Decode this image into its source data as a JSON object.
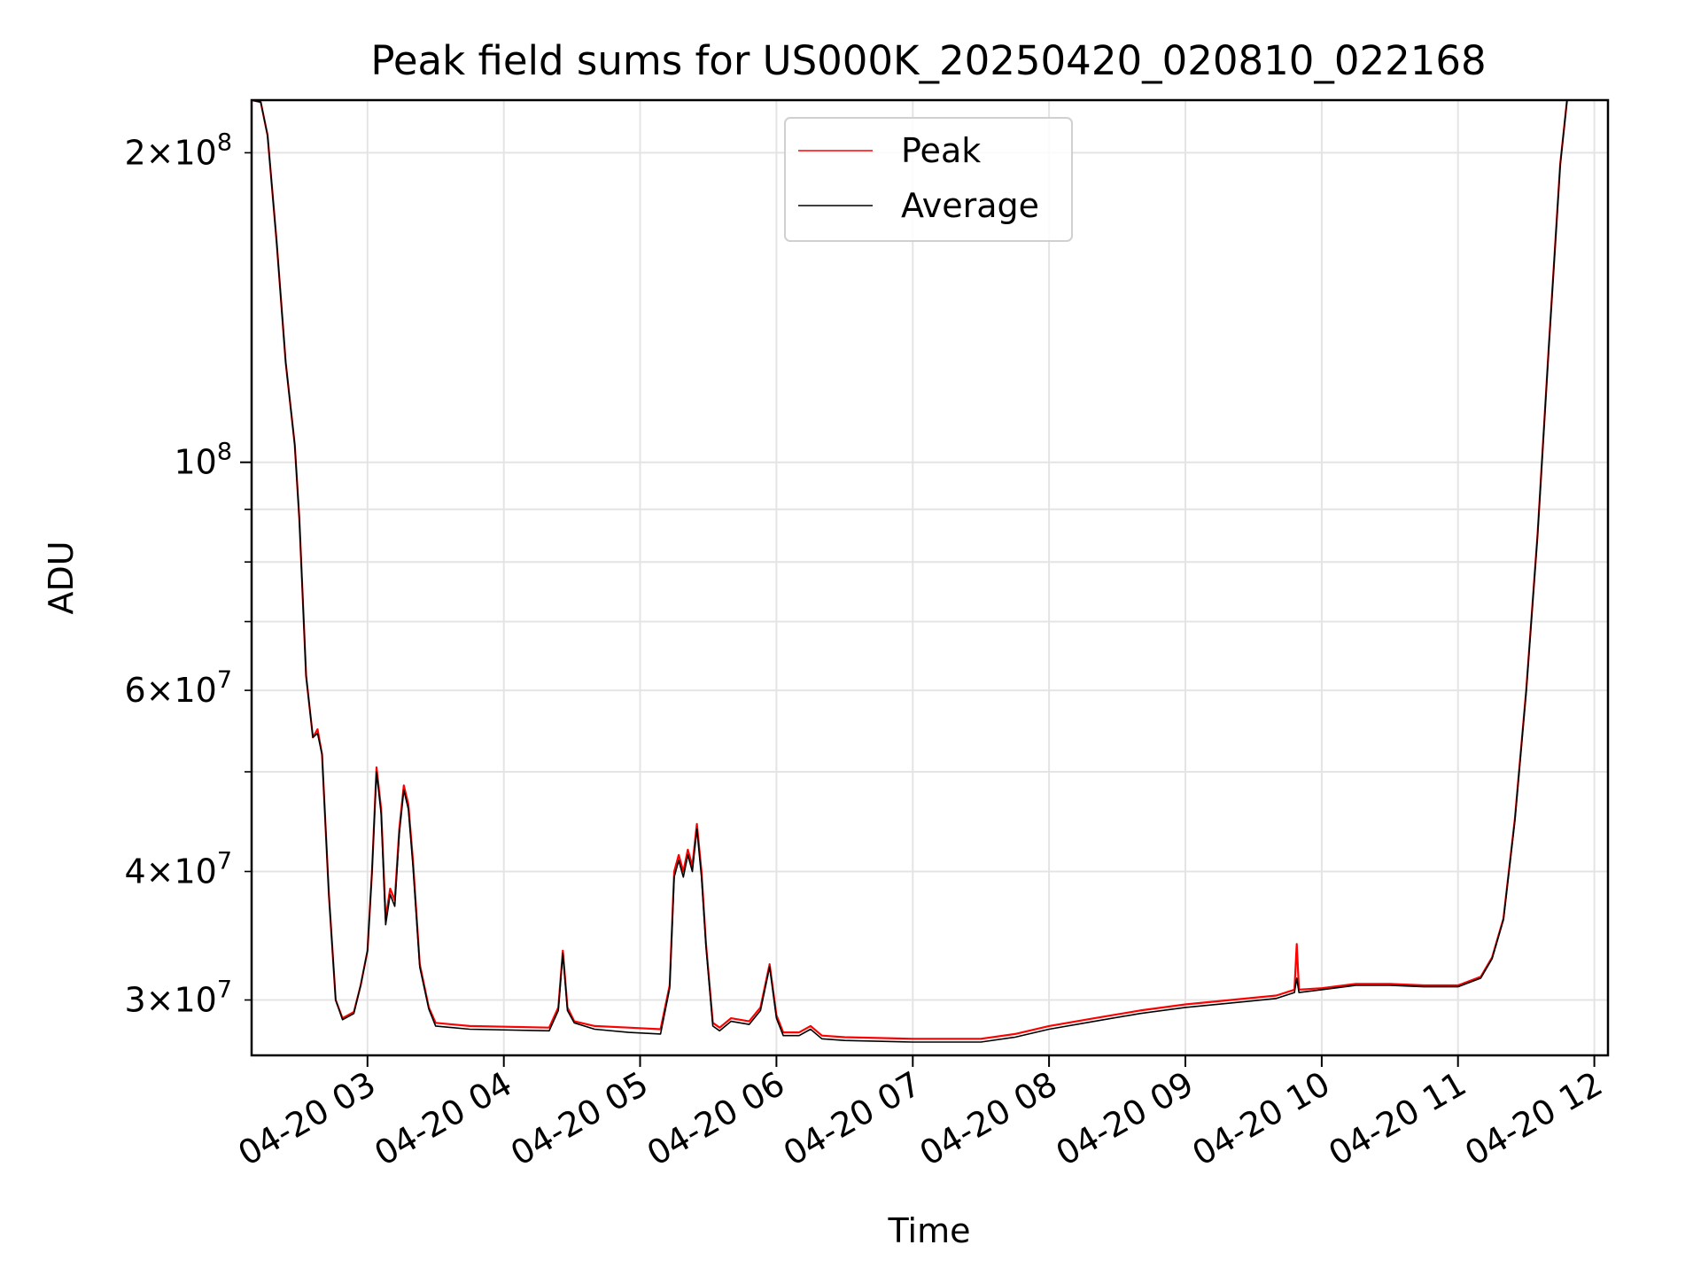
{
  "chart_data": {
    "type": "line",
    "title": "Peak field sums for US000K_20250420_020810_022168",
    "xlabel": "Time",
    "ylabel": "ADU",
    "yscale": "log",
    "ylim": [
      26500000,
      225000000
    ],
    "xlim": [
      "04-20 02:09",
      "04-20 12:06"
    ],
    "grid": true,
    "legend_position": "upper center",
    "x_ticks": [
      "04-20 03",
      "04-20 04",
      "04-20 05",
      "04-20 06",
      "04-20 07",
      "04-20 08",
      "04-20 09",
      "04-20 10",
      "04-20 11",
      "04-20 12"
    ],
    "y_ticks": [
      {
        "value": 30000000,
        "mant": "3",
        "exp": "7"
      },
      {
        "value": 40000000,
        "mant": "4",
        "exp": "7"
      },
      {
        "value": 60000000,
        "mant": "6",
        "exp": "7"
      },
      {
        "value": 100000000,
        "mant": "",
        "exp": "8"
      },
      {
        "value": 200000000,
        "mant": "2",
        "exp": "8"
      }
    ],
    "series": [
      {
        "name": "Peak",
        "color": "#ff0000",
        "points": [
          [
            "04-20 02:09",
            225000000
          ],
          [
            "04-20 02:13",
            224000000
          ],
          [
            "04-20 02:16",
            208000000
          ],
          [
            "04-20 02:20",
            164000000
          ],
          [
            "04-20 02:24",
            125000000
          ],
          [
            "04-20 02:28",
            104000000
          ],
          [
            "04-20 02:30",
            88000000
          ],
          [
            "04-20 02:33",
            62000000
          ],
          [
            "04-20 02:36",
            54000000
          ],
          [
            "04-20 02:38",
            55000000
          ],
          [
            "04-20 02:40",
            52000000
          ],
          [
            "04-20 02:43",
            38000000
          ],
          [
            "04-20 02:46",
            30000000
          ],
          [
            "04-20 02:49",
            28800000
          ],
          [
            "04-20 02:54",
            29200000
          ],
          [
            "04-20 02:57",
            31000000
          ],
          [
            "04-20 03:00",
            33500000
          ],
          [
            "04-20 03:02",
            40000000
          ],
          [
            "04-20 03:04",
            50500000
          ],
          [
            "04-20 03:06",
            46000000
          ],
          [
            "04-20 03:08",
            36000000
          ],
          [
            "04-20 03:10",
            38500000
          ],
          [
            "04-20 03:12",
            37500000
          ],
          [
            "04-20 03:14",
            44000000
          ],
          [
            "04-20 03:16",
            48500000
          ],
          [
            "04-20 03:18",
            46500000
          ],
          [
            "04-20 03:20",
            41000000
          ],
          [
            "04-20 03:23",
            32500000
          ],
          [
            "04-20 03:27",
            29500000
          ],
          [
            "04-20 03:30",
            28500000
          ],
          [
            "04-20 03:45",
            28300000
          ],
          [
            "04-20 04:20",
            28200000
          ],
          [
            "04-20 04:24",
            29500000
          ],
          [
            "04-20 04:26",
            33500000
          ],
          [
            "04-20 04:28",
            29500000
          ],
          [
            "04-20 04:31",
            28600000
          ],
          [
            "04-20 04:40",
            28300000
          ],
          [
            "04-20 04:55",
            28200000
          ],
          [
            "04-20 05:09",
            28100000
          ],
          [
            "04-20 05:13",
            31000000
          ],
          [
            "04-20 05:15",
            40000000
          ],
          [
            "04-20 05:17",
            41500000
          ],
          [
            "04-20 05:19",
            40000000
          ],
          [
            "04-20 05:21",
            42000000
          ],
          [
            "04-20 05:23",
            40500000
          ],
          [
            "04-20 05:25",
            44500000
          ],
          [
            "04-20 05:27",
            40000000
          ],
          [
            "04-20 05:29",
            34000000
          ],
          [
            "04-20 05:32",
            28500000
          ],
          [
            "04-20 05:35",
            28200000
          ],
          [
            "04-20 05:40",
            28800000
          ],
          [
            "04-20 05:48",
            28600000
          ],
          [
            "04-20 05:53",
            29500000
          ],
          [
            "04-20 05:57",
            32500000
          ],
          [
            "04-20 06:00",
            29000000
          ],
          [
            "04-20 06:03",
            27900000
          ],
          [
            "04-20 06:10",
            27900000
          ],
          [
            "04-20 06:15",
            28300000
          ],
          [
            "04-20 06:20",
            27700000
          ],
          [
            "04-20 06:30",
            27600000
          ],
          [
            "04-20 07:00",
            27500000
          ],
          [
            "04-20 07:30",
            27500000
          ],
          [
            "04-20 07:45",
            27800000
          ],
          [
            "04-20 08:00",
            28300000
          ],
          [
            "04-20 08:20",
            28800000
          ],
          [
            "04-20 08:40",
            29300000
          ],
          [
            "04-20 09:00",
            29700000
          ],
          [
            "04-20 09:20",
            30000000
          ],
          [
            "04-20 09:40",
            30300000
          ],
          [
            "04-20 09:48",
            30700000
          ],
          [
            "04-20 09:49",
            34000000
          ],
          [
            "04-20 09:50",
            30700000
          ],
          [
            "04-20 10:00",
            30800000
          ],
          [
            "04-20 10:15",
            31100000
          ],
          [
            "04-20 10:30",
            31100000
          ],
          [
            "04-20 10:45",
            31000000
          ],
          [
            "04-20 11:00",
            31000000
          ],
          [
            "04-20 11:10",
            31600000
          ],
          [
            "04-20 11:15",
            33000000
          ],
          [
            "04-20 11:20",
            36000000
          ],
          [
            "04-20 11:25",
            45000000
          ],
          [
            "04-20 11:30",
            60000000
          ],
          [
            "04-20 11:35",
            85000000
          ],
          [
            "04-20 11:40",
            130000000
          ],
          [
            "04-20 11:45",
            195000000
          ],
          [
            "04-20 11:48",
            225000000
          ]
        ]
      },
      {
        "name": "Average",
        "color": "#000000",
        "points": [
          [
            "04-20 02:09",
            225000000
          ],
          [
            "04-20 02:13",
            224000000
          ],
          [
            "04-20 02:16",
            208000000
          ],
          [
            "04-20 02:20",
            164000000
          ],
          [
            "04-20 02:24",
            125000000
          ],
          [
            "04-20 02:28",
            104000000
          ],
          [
            "04-20 02:30",
            88000000
          ],
          [
            "04-20 02:33",
            62000000
          ],
          [
            "04-20 02:36",
            54000000
          ],
          [
            "04-20 02:38",
            54500000
          ],
          [
            "04-20 02:40",
            52000000
          ],
          [
            "04-20 02:43",
            38000000
          ],
          [
            "04-20 02:46",
            30000000
          ],
          [
            "04-20 02:49",
            28700000
          ],
          [
            "04-20 02:54",
            29100000
          ],
          [
            "04-20 02:57",
            31000000
          ],
          [
            "04-20 03:00",
            33500000
          ],
          [
            "04-20 03:02",
            40000000
          ],
          [
            "04-20 03:04",
            50000000
          ],
          [
            "04-20 03:06",
            45500000
          ],
          [
            "04-20 03:08",
            35500000
          ],
          [
            "04-20 03:10",
            38000000
          ],
          [
            "04-20 03:12",
            37000000
          ],
          [
            "04-20 03:14",
            43500000
          ],
          [
            "04-20 03:16",
            48000000
          ],
          [
            "04-20 03:18",
            46000000
          ],
          [
            "04-20 03:20",
            40500000
          ],
          [
            "04-20 03:23",
            32300000
          ],
          [
            "04-20 03:27",
            29400000
          ],
          [
            "04-20 03:30",
            28300000
          ],
          [
            "04-20 03:45",
            28100000
          ],
          [
            "04-20 04:20",
            28000000
          ],
          [
            "04-20 04:24",
            29300000
          ],
          [
            "04-20 04:26",
            33300000
          ],
          [
            "04-20 04:28",
            29300000
          ],
          [
            "04-20 04:31",
            28500000
          ],
          [
            "04-20 04:40",
            28100000
          ],
          [
            "04-20 04:55",
            27900000
          ],
          [
            "04-20 05:09",
            27800000
          ],
          [
            "04-20 05:13",
            30800000
          ],
          [
            "04-20 05:15",
            39500000
          ],
          [
            "04-20 05:17",
            41000000
          ],
          [
            "04-20 05:19",
            39500000
          ],
          [
            "04-20 05:21",
            41500000
          ],
          [
            "04-20 05:23",
            40000000
          ],
          [
            "04-20 05:25",
            44000000
          ],
          [
            "04-20 05:27",
            39500000
          ],
          [
            "04-20 05:29",
            33800000
          ],
          [
            "04-20 05:32",
            28300000
          ],
          [
            "04-20 05:35",
            28000000
          ],
          [
            "04-20 05:40",
            28600000
          ],
          [
            "04-20 05:48",
            28400000
          ],
          [
            "04-20 05:53",
            29300000
          ],
          [
            "04-20 05:57",
            32300000
          ],
          [
            "04-20 06:00",
            28800000
          ],
          [
            "04-20 06:03",
            27700000
          ],
          [
            "04-20 06:10",
            27700000
          ],
          [
            "04-20 06:15",
            28100000
          ],
          [
            "04-20 06:20",
            27500000
          ],
          [
            "04-20 06:30",
            27400000
          ],
          [
            "04-20 07:00",
            27300000
          ],
          [
            "04-20 07:30",
            27300000
          ],
          [
            "04-20 07:45",
            27600000
          ],
          [
            "04-20 08:00",
            28100000
          ],
          [
            "04-20 08:20",
            28600000
          ],
          [
            "04-20 08:40",
            29100000
          ],
          [
            "04-20 09:00",
            29500000
          ],
          [
            "04-20 09:20",
            29800000
          ],
          [
            "04-20 09:40",
            30100000
          ],
          [
            "04-20 09:48",
            30500000
          ],
          [
            "04-20 09:49",
            31500000
          ],
          [
            "04-20 09:50",
            30500000
          ],
          [
            "04-20 10:00",
            30700000
          ],
          [
            "04-20 10:15",
            31000000
          ],
          [
            "04-20 10:30",
            31000000
          ],
          [
            "04-20 10:45",
            30900000
          ],
          [
            "04-20 11:00",
            30900000
          ],
          [
            "04-20 11:10",
            31500000
          ],
          [
            "04-20 11:15",
            32900000
          ],
          [
            "04-20 11:20",
            35900000
          ],
          [
            "04-20 11:25",
            44800000
          ],
          [
            "04-20 11:30",
            59800000
          ],
          [
            "04-20 11:35",
            84800000
          ],
          [
            "04-20 11:40",
            129500000
          ],
          [
            "04-20 11:45",
            194500000
          ],
          [
            "04-20 11:48",
            225000000
          ]
        ]
      }
    ]
  }
}
